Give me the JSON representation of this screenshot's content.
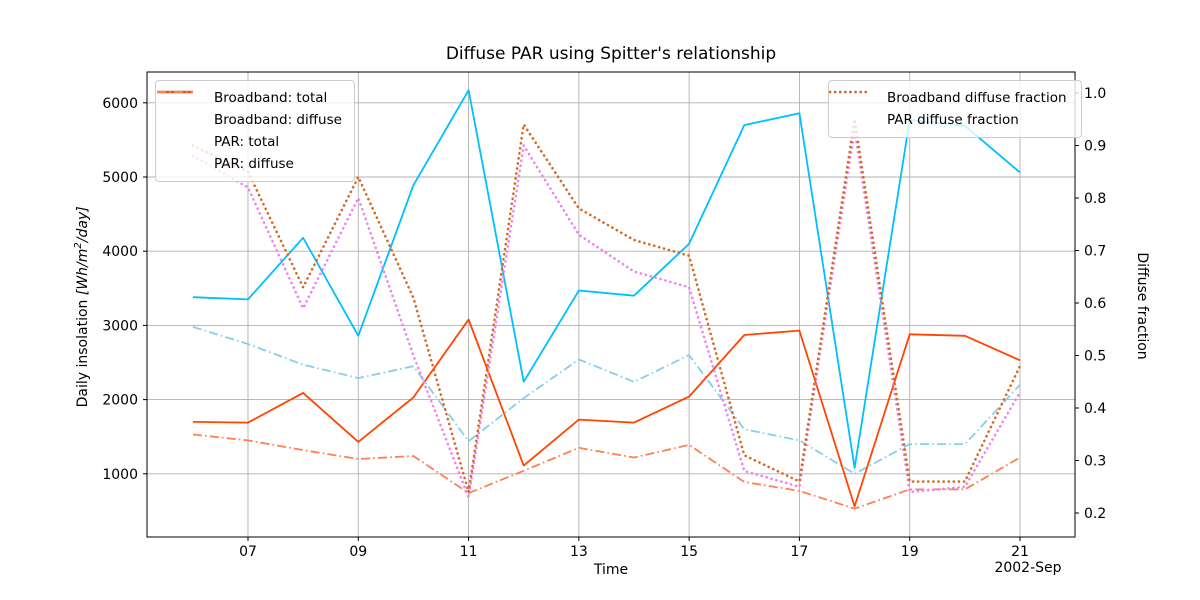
{
  "title": "Diffuse PAR using Spitter's relationship",
  "axes": {
    "x": {
      "label": "Time",
      "date_label": "2002-Sep",
      "tick_days": [
        7,
        9,
        11,
        13,
        15,
        17,
        19,
        21
      ],
      "tick_labels": [
        "07",
        "09",
        "11",
        "13",
        "15",
        "17",
        "19",
        "21"
      ]
    },
    "y_left": {
      "label_prefix": "Daily insolation ",
      "label_unit_open": "[Wh/m",
      "label_unit_sup": "2",
      "label_unit_close": "/day]",
      "ticks": [
        1000,
        2000,
        3000,
        4000,
        5000,
        6000
      ]
    },
    "y_right": {
      "label": "Diffuse fraction",
      "ticks": [
        "0.2",
        "0.3",
        "0.4",
        "0.5",
        "0.6",
        "0.7",
        "0.8",
        "0.9",
        "1.0"
      ]
    }
  },
  "legends": {
    "insolation": {
      "items": [
        {
          "label": "Broadband: total",
          "color": "#00BFFF",
          "style": "solid"
        },
        {
          "label": "Broadband: diffuse",
          "color": "#87CEEB",
          "style": "dashdot"
        },
        {
          "label": "PAR: total",
          "color": "#FF4500",
          "style": "solid"
        },
        {
          "label": "PAR: diffuse",
          "color": "#FF7F50",
          "style": "dashdot"
        }
      ]
    },
    "fraction": {
      "items": [
        {
          "label": "Broadband diffuse fraction",
          "color": "#EE82EE",
          "style": "dotted"
        },
        {
          "label": "PAR diffuse fraction",
          "color": "#D2691E",
          "style": "dotted"
        }
      ]
    }
  },
  "chart_data": {
    "type": "line",
    "x_days": [
      6,
      7,
      8,
      9,
      10,
      11,
      12,
      13,
      14,
      15,
      16,
      17,
      18,
      19,
      20,
      21
    ],
    "x_month": "2002-Sep",
    "y_left_axis": {
      "label": "Daily insolation [Wh/m2/day]",
      "ticks": [
        1000,
        2000,
        3000,
        4000,
        5000,
        6000
      ]
    },
    "y_right_axis": {
      "label": "Diffuse fraction",
      "range": [
        0.2,
        1.0
      ]
    },
    "grid": true,
    "series": [
      {
        "name": "Broadband: total",
        "axis": "left",
        "color": "#00BFFF",
        "style": "solid",
        "values": [
          3380,
          3350,
          4180,
          2860,
          4890,
          6170,
          2240,
          3470,
          3400,
          4100,
          5700,
          5860,
          1080,
          5770,
          5690,
          5060
        ]
      },
      {
        "name": "Broadband: diffuse",
        "axis": "left",
        "color": "#87CEEB",
        "style": "dashdot",
        "values": [
          2980,
          2750,
          2470,
          2290,
          2450,
          1440,
          2020,
          2540,
          2240,
          2600,
          1600,
          1450,
          1000,
          1400,
          1400,
          2200
        ]
      },
      {
        "name": "PAR: total",
        "axis": "left",
        "color": "#FF4500",
        "style": "solid",
        "values": [
          1700,
          1690,
          2090,
          1430,
          2030,
          3080,
          1110,
          1730,
          1690,
          2040,
          2870,
          2930,
          560,
          2880,
          2860,
          2530
        ]
      },
      {
        "name": "PAR: diffuse",
        "axis": "left",
        "color": "#FF7F50",
        "style": "dashdot",
        "values": [
          1530,
          1450,
          1320,
          1200,
          1240,
          740,
          1040,
          1350,
          1220,
          1390,
          890,
          770,
          530,
          790,
          790,
          1220
        ]
      },
      {
        "name": "Broadband diffuse fraction",
        "axis": "right",
        "color": "#EE82EE",
        "style": "dotted",
        "values": [
          0.88,
          0.82,
          0.59,
          0.8,
          0.5,
          0.23,
          0.9,
          0.73,
          0.66,
          0.63,
          0.28,
          0.25,
          0.93,
          0.24,
          0.25,
          0.43
        ]
      },
      {
        "name": "PAR diffuse fraction",
        "axis": "right",
        "color": "#D2691E",
        "style": "dotted",
        "values": [
          0.9,
          0.85,
          0.63,
          0.84,
          0.61,
          0.24,
          0.94,
          0.78,
          0.72,
          0.69,
          0.31,
          0.26,
          0.95,
          0.26,
          0.26,
          0.48
        ]
      }
    ]
  },
  "colors": {
    "grid": "#b0b0b0",
    "spine": "#000000",
    "background": "#ffffff"
  }
}
